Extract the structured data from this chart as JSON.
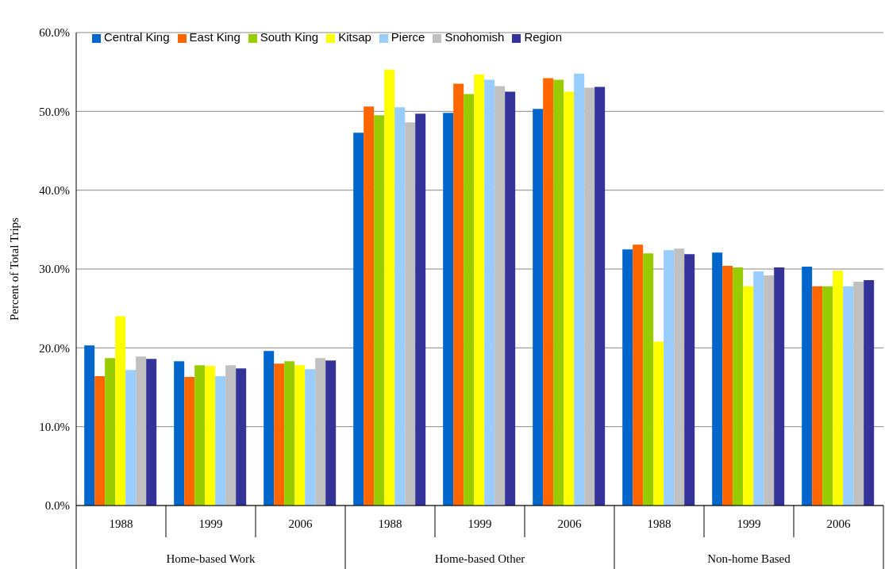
{
  "chart_data": {
    "type": "bar",
    "ylabel": "Percent of Total Trips",
    "categories": [
      "1988",
      "1999",
      "2006",
      "1988",
      "1999",
      "2006",
      "1988",
      "1999",
      "2006"
    ],
    "annotations": [
      "Home-based Work",
      "Home-based Other",
      "Non-home Based"
    ],
    "series": [
      {
        "name": "Central King",
        "color": "#0066cc",
        "values": [
          20.3,
          18.3,
          19.6,
          47.3,
          49.8,
          50.3,
          32.5,
          32.1,
          30.3
        ]
      },
      {
        "name": "East King",
        "color": "#ff6600",
        "values": [
          16.4,
          16.3,
          18.0,
          50.6,
          53.5,
          54.2,
          33.1,
          30.4,
          27.8
        ]
      },
      {
        "name": "South King",
        "color": "#99cc00",
        "values": [
          18.7,
          17.8,
          18.3,
          49.5,
          52.2,
          54.0,
          32.0,
          30.2,
          27.8
        ]
      },
      {
        "name": "Kitsap",
        "color": "#ffff00",
        "values": [
          24.0,
          17.7,
          17.8,
          55.3,
          54.7,
          52.5,
          20.8,
          27.8,
          29.8
        ]
      },
      {
        "name": "Pierce",
        "color": "#99ccff",
        "values": [
          17.2,
          16.4,
          17.3,
          50.5,
          54.0,
          54.8,
          32.4,
          29.7,
          27.8
        ]
      },
      {
        "name": "Snohomish",
        "color": "#c0c0c0",
        "values": [
          18.9,
          17.8,
          18.7,
          48.6,
          53.2,
          53.0,
          32.6,
          29.2,
          28.4
        ]
      },
      {
        "name": "Region",
        "color": "#333399",
        "values": [
          18.6,
          17.4,
          18.4,
          49.7,
          52.5,
          53.1,
          31.9,
          30.2,
          28.6
        ]
      }
    ],
    "ylim": [
      0,
      60
    ],
    "yticks": [
      {
        "value": 0,
        "label": "0.0%"
      },
      {
        "value": 10,
        "label": "10.0%"
      },
      {
        "value": 20,
        "label": "20.0%"
      },
      {
        "value": 30,
        "label": "30.0%"
      },
      {
        "value": 40,
        "label": "40.0%"
      },
      {
        "value": 50,
        "label": "50.0%"
      },
      {
        "value": 60,
        "label": "60.0%"
      }
    ],
    "grid": "y",
    "legend": "top left"
  }
}
